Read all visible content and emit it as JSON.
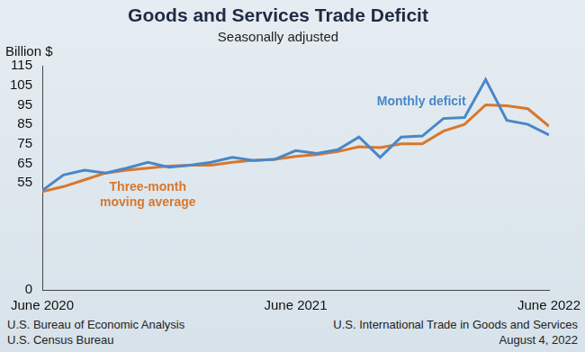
{
  "chart_data": {
    "type": "line",
    "title": "Goods and Services Trade Deficit",
    "subtitle": "Seasonally adjusted",
    "y_label": "Billion $",
    "categories": [
      "June 2020",
      null,
      null,
      null,
      null,
      null,
      null,
      null,
      null,
      null,
      null,
      null,
      "June 2021",
      null,
      null,
      null,
      null,
      null,
      null,
      null,
      null,
      null,
      null,
      null,
      "June 2022"
    ],
    "series": [
      {
        "name": "Monthly deficit",
        "color": "#4a86c8",
        "marker": "none",
        "values": [
          51,
          59,
          61.5,
          60,
          62.5,
          65.5,
          63,
          64,
          65.5,
          68,
          66.5,
          67,
          71.5,
          70,
          72,
          78.5,
          68,
          78.5,
          79,
          88,
          88.5,
          108,
          87,
          85,
          79.5
        ]
      },
      {
        "name": "Three-month moving average",
        "color": "#d9772b",
        "marker": "none",
        "values": [
          50.5,
          53,
          56.5,
          60,
          61.5,
          62.5,
          63.5,
          64,
          64,
          65.5,
          66.5,
          67,
          68.5,
          69.5,
          71,
          73.5,
          73,
          75,
          75,
          81.5,
          85,
          95,
          94.5,
          93,
          84
        ]
      }
    ],
    "ylim": [
      0,
      115
    ],
    "yticks": [
      0,
      55,
      65,
      75,
      85,
      95,
      105,
      115
    ],
    "grid": false,
    "footnotes_left": [
      "U.S. Bureau of Economic Analysis",
      "U.S. Census Bureau"
    ],
    "footnotes_right": [
      "U.S. International Trade in Goods and Services",
      "August 4, 2022"
    ]
  }
}
